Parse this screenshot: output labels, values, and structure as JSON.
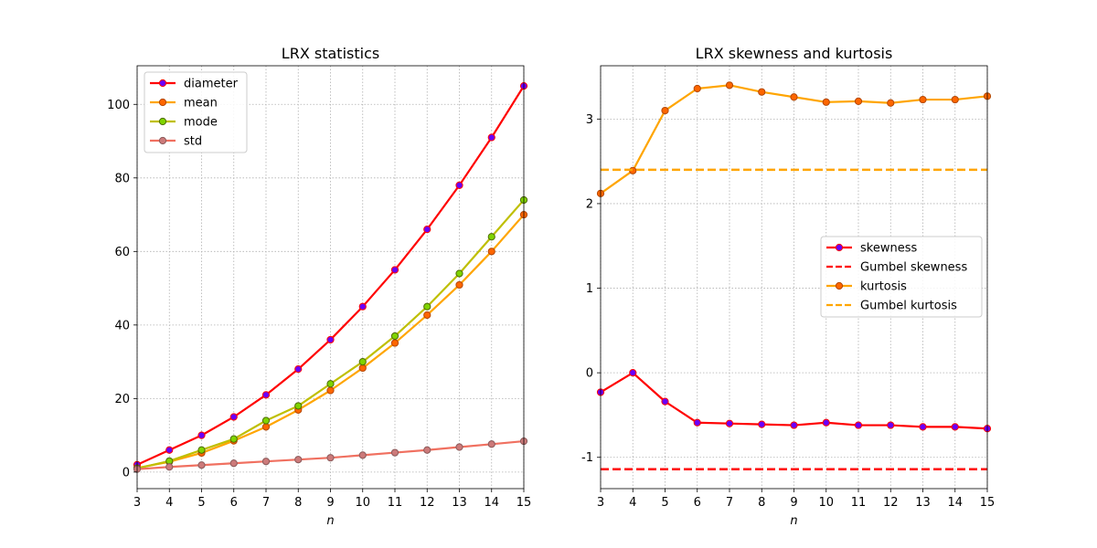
{
  "chart_data": [
    {
      "type": "line",
      "title": "LRX statistics",
      "xlabel": "n",
      "ylabel": "",
      "xlim": [
        3,
        15
      ],
      "ylim": [
        -4.5,
        110.5
      ],
      "xticks": [
        3,
        4,
        5,
        6,
        7,
        8,
        9,
        10,
        11,
        12,
        13,
        14,
        15
      ],
      "yticks": [
        0,
        20,
        40,
        60,
        80,
        100
      ],
      "grid": true,
      "legend_position": "upper-left",
      "x": [
        3,
        4,
        5,
        6,
        7,
        8,
        9,
        10,
        11,
        12,
        13,
        14,
        15
      ],
      "series": [
        {
          "name": "diameter",
          "style": "line",
          "color": "#ff0000",
          "marker_face": "#6a00ff",
          "marker_edge": "#ff0000",
          "values": [
            2,
            6,
            10,
            15,
            21,
            28,
            36,
            45,
            55,
            66,
            78,
            91,
            105
          ]
        },
        {
          "name": "mean",
          "style": "line",
          "color": "#ffa500",
          "marker_face": "#ff6600",
          "marker_edge": "#b34700",
          "values": [
            1.1,
            2.8,
            5.2,
            8.5,
            12.3,
            16.9,
            22.2,
            28.3,
            35.1,
            42.7,
            50.9,
            60.0,
            70.0
          ]
        },
        {
          "name": "mode",
          "style": "line",
          "color": "#bfbf00",
          "marker_face": "#7fd400",
          "marker_edge": "#4d6b00",
          "values": [
            1,
            3,
            6,
            9,
            14,
            18,
            24,
            30,
            37,
            45,
            54,
            64,
            74
          ]
        },
        {
          "name": "std",
          "style": "line",
          "color": "#f07060",
          "marker_face": "#cc7a7a",
          "marker_edge": "#8a5a5a",
          "values": [
            0.8,
            1.4,
            1.9,
            2.4,
            2.9,
            3.4,
            3.9,
            4.6,
            5.3,
            6.0,
            6.8,
            7.6,
            8.4
          ]
        }
      ]
    },
    {
      "type": "line",
      "title": "LRX skewness and kurtosis",
      "xlabel": "n",
      "ylabel": "",
      "xlim": [
        3,
        15
      ],
      "ylim": [
        -1.37,
        3.63
      ],
      "xticks": [
        3,
        4,
        5,
        6,
        7,
        8,
        9,
        10,
        11,
        12,
        13,
        14,
        15
      ],
      "yticks": [
        -1,
        0,
        1,
        2,
        3
      ],
      "grid": true,
      "legend_position": "center-right",
      "x": [
        3,
        4,
        5,
        6,
        7,
        8,
        9,
        10,
        11,
        12,
        13,
        14,
        15
      ],
      "series": [
        {
          "name": "skewness",
          "style": "line",
          "color": "#ff0000",
          "marker_face": "#6a00ff",
          "marker_edge": "#ff0000",
          "values": [
            -0.23,
            0.0,
            -0.34,
            -0.59,
            -0.6,
            -0.61,
            -0.62,
            -0.59,
            -0.62,
            -0.62,
            -0.64,
            -0.64,
            -0.66
          ]
        },
        {
          "name": "Gumbel skewness",
          "style": "hline",
          "color": "#ff0000",
          "value": -1.14
        },
        {
          "name": "kurtosis",
          "style": "line",
          "color": "#ffa500",
          "marker_face": "#ff6600",
          "marker_edge": "#b34700",
          "values": [
            2.12,
            2.39,
            3.1,
            3.36,
            3.4,
            3.32,
            3.26,
            3.2,
            3.21,
            3.19,
            3.23,
            3.23,
            3.27
          ]
        },
        {
          "name": "Gumbel kurtosis",
          "style": "hline",
          "color": "#ffa500",
          "value": 2.4
        }
      ]
    }
  ]
}
